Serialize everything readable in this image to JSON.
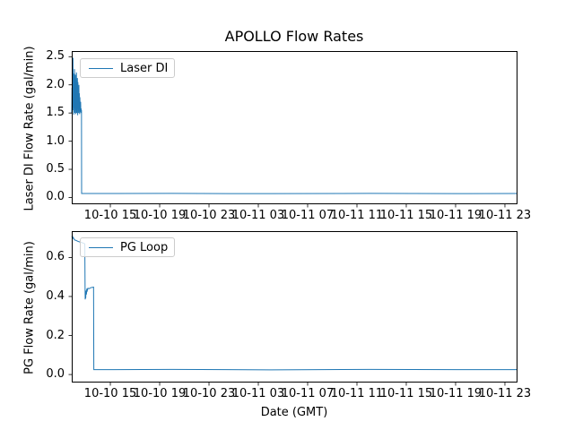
{
  "figure": {
    "title": "APOLLO Flow Rates",
    "background": "#ffffff"
  },
  "chart_data": [
    {
      "type": "line",
      "name": "laser-di-subplot",
      "ylabel": "Laser DI Flow Rate (gal/min)",
      "xlabel": "",
      "x_unit": "hours since 10-10 00:00 GMT",
      "xlim": [
        11.87,
        48.02
      ],
      "ylim": [
        -0.12,
        2.6
      ],
      "xticks": [
        15,
        19,
        23,
        27,
        31,
        35,
        39,
        43,
        47
      ],
      "xtick_labels": [
        "10-10 15",
        "10-10 19",
        "10-10 23",
        "10-11 03",
        "10-11 07",
        "10-11 11",
        "10-11 15",
        "10-11 19",
        "10-11 23"
      ],
      "yticks": [
        0.0,
        0.5,
        1.0,
        1.5,
        2.0,
        2.5
      ],
      "ytick_labels": [
        "0.0",
        "0.5",
        "1.0",
        "1.5",
        "2.0",
        "2.5"
      ],
      "grid": false,
      "legend_position": "upper-left",
      "line_color": "#1f77b4",
      "series": [
        {
          "name": "Laser DI",
          "points": [
            [
              11.87,
              1.5
            ],
            [
              11.89,
              1.95
            ],
            [
              11.91,
              1.52
            ],
            [
              11.93,
              2.1
            ],
            [
              11.95,
              1.6
            ],
            [
              11.97,
              2.48
            ],
            [
              11.99,
              1.55
            ],
            [
              12.01,
              2.05
            ],
            [
              12.03,
              1.47
            ],
            [
              12.05,
              2.2
            ],
            [
              12.07,
              1.58
            ],
            [
              12.09,
              2.28
            ],
            [
              12.11,
              1.5
            ],
            [
              12.13,
              2.02
            ],
            [
              12.15,
              1.62
            ],
            [
              12.17,
              2.18
            ],
            [
              12.19,
              1.48
            ],
            [
              12.21,
              2.08
            ],
            [
              12.23,
              1.55
            ],
            [
              12.25,
              2.22
            ],
            [
              12.27,
              1.5
            ],
            [
              12.29,
              1.98
            ],
            [
              12.31,
              1.6
            ],
            [
              12.33,
              2.12
            ],
            [
              12.35,
              1.46
            ],
            [
              12.37,
              2.05
            ],
            [
              12.39,
              1.58
            ],
            [
              12.41,
              1.9
            ],
            [
              12.43,
              1.5
            ],
            [
              12.45,
              2.0
            ],
            [
              12.47,
              1.55
            ],
            [
              12.49,
              1.85
            ],
            [
              12.51,
              1.48
            ],
            [
              12.53,
              1.78
            ],
            [
              12.55,
              1.6
            ],
            [
              12.57,
              1.52
            ],
            [
              12.59,
              1.7
            ],
            [
              12.61,
              1.5
            ],
            [
              12.63,
              1.58
            ],
            [
              12.65,
              1.52
            ],
            [
              12.66,
              1.55
            ],
            [
              12.67,
              0.07
            ],
            [
              20.0,
              0.072
            ],
            [
              28.0,
              0.068
            ],
            [
              36.0,
              0.072
            ],
            [
              44.0,
              0.069
            ],
            [
              48.02,
              0.07
            ]
          ]
        }
      ]
    },
    {
      "type": "line",
      "name": "pg-loop-subplot",
      "ylabel": "PG Flow Rate (gal/min)",
      "xlabel": "Date (GMT)",
      "x_unit": "hours since 10-10 00:00 GMT",
      "xlim": [
        11.87,
        48.02
      ],
      "ylim": [
        -0.041,
        0.735
      ],
      "xticks": [
        15,
        19,
        23,
        27,
        31,
        35,
        39,
        43,
        47
      ],
      "xtick_labels": [
        "10-10 15",
        "10-10 19",
        "10-10 23",
        "10-11 03",
        "10-11 07",
        "10-11 11",
        "10-11 15",
        "10-11 19",
        "10-11 23"
      ],
      "yticks": [
        0.0,
        0.2,
        0.4,
        0.6
      ],
      "ytick_labels": [
        "0.0",
        "0.2",
        "0.4",
        "0.6"
      ],
      "grid": false,
      "legend_position": "upper-left",
      "line_color": "#1f77b4",
      "series": [
        {
          "name": "PG Loop",
          "points": [
            [
              11.87,
              0.705
            ],
            [
              11.92,
              0.712
            ],
            [
              11.95,
              0.698
            ],
            [
              12.0,
              0.702
            ],
            [
              12.05,
              0.695
            ],
            [
              12.1,
              0.69
            ],
            [
              12.2,
              0.688
            ],
            [
              12.3,
              0.685
            ],
            [
              12.4,
              0.682
            ],
            [
              12.5,
              0.68
            ],
            [
              12.6,
              0.678
            ],
            [
              12.7,
              0.676
            ],
            [
              12.85,
              0.672
            ],
            [
              12.93,
              0.67
            ],
            [
              12.95,
              0.445
            ],
            [
              12.96,
              0.385
            ],
            [
              12.98,
              0.42
            ],
            [
              13.0,
              0.39
            ],
            [
              13.03,
              0.43
            ],
            [
              13.06,
              0.41
            ],
            [
              13.09,
              0.44
            ],
            [
              13.13,
              0.43
            ],
            [
              13.18,
              0.442
            ],
            [
              13.28,
              0.44
            ],
            [
              13.4,
              0.445
            ],
            [
              13.55,
              0.447
            ],
            [
              13.64,
              0.448
            ],
            [
              13.66,
              0.025
            ],
            [
              20.0,
              0.026
            ],
            [
              28.0,
              0.024
            ],
            [
              36.0,
              0.026
            ],
            [
              44.0,
              0.025
            ],
            [
              48.02,
              0.025
            ]
          ]
        }
      ]
    }
  ]
}
